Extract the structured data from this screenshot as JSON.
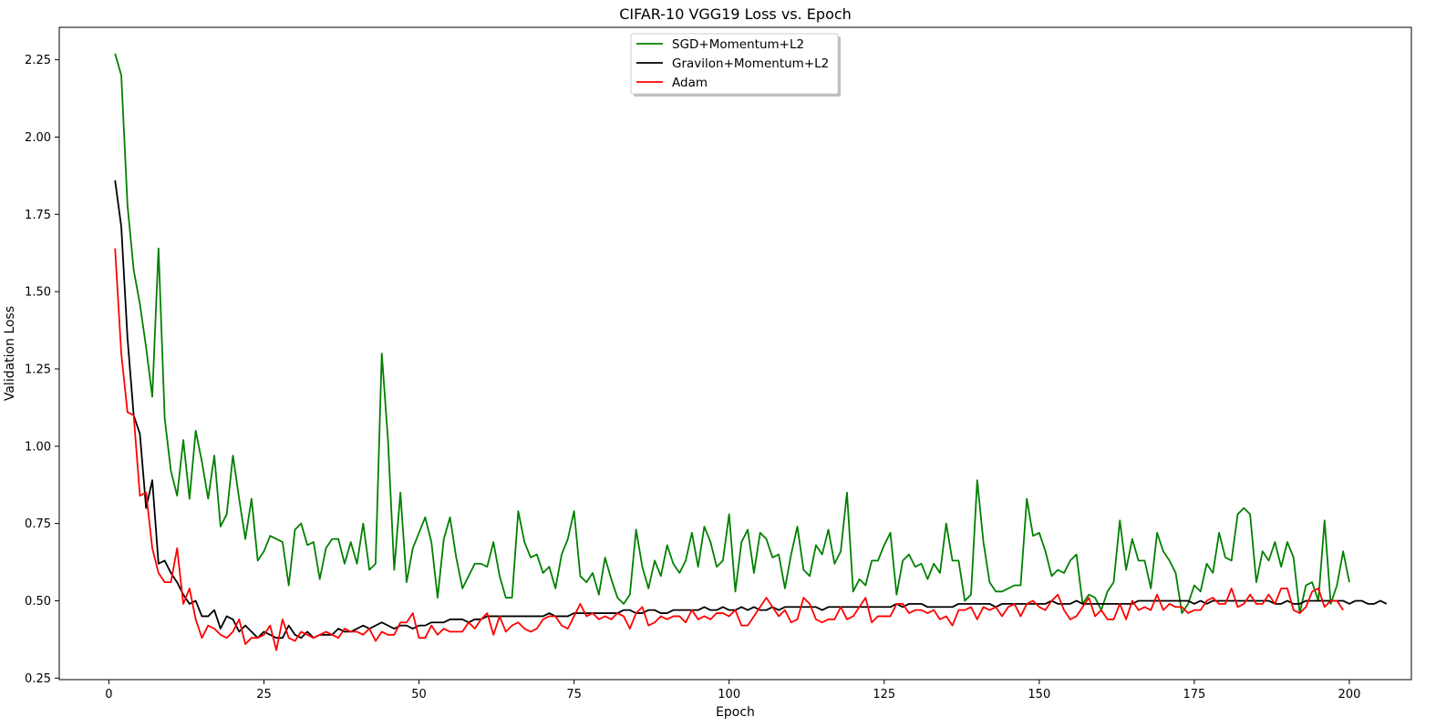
{
  "chart_data": {
    "type": "line",
    "title": "CIFAR-10 VGG19 Loss vs. Epoch",
    "xlabel": "Epoch",
    "ylabel": "Validation Loss",
    "xlim": [
      -8,
      210
    ],
    "ylim": [
      0.245,
      2.355
    ],
    "xticks": [
      0,
      25,
      50,
      75,
      100,
      125,
      150,
      175,
      200
    ],
    "yticks": [
      0.25,
      0.5,
      0.75,
      1.0,
      1.25,
      1.5,
      1.75,
      2.0,
      2.25
    ],
    "ytick_labels": [
      "0.25",
      "0.50",
      "0.75",
      "1.00",
      "1.25",
      "1.50",
      "1.75",
      "2.00",
      "2.25"
    ],
    "grid": false,
    "legend_position": "upper-center",
    "x_start": 1,
    "series": [
      {
        "name": "SGD+Momentum+L2",
        "color": "#008000",
        "values": [
          2.27,
          2.2,
          1.78,
          1.57,
          1.46,
          1.32,
          1.16,
          1.64,
          1.09,
          0.92,
          0.84,
          1.02,
          0.83,
          1.05,
          0.95,
          0.83,
          0.97,
          0.74,
          0.78,
          0.97,
          0.83,
          0.7,
          0.83,
          0.63,
          0.66,
          0.71,
          0.7,
          0.69,
          0.55,
          0.73,
          0.75,
          0.68,
          0.69,
          0.57,
          0.67,
          0.7,
          0.7,
          0.62,
          0.69,
          0.62,
          0.75,
          0.6,
          0.62,
          1.3,
          1.02,
          0.6,
          0.85,
          0.56,
          0.67,
          0.72,
          0.77,
          0.69,
          0.51,
          0.7,
          0.77,
          0.64,
          0.54,
          0.58,
          0.62,
          0.62,
          0.61,
          0.69,
          0.58,
          0.51,
          0.51,
          0.79,
          0.69,
          0.64,
          0.65,
          0.59,
          0.61,
          0.54,
          0.65,
          0.7,
          0.79,
          0.58,
          0.56,
          0.59,
          0.52,
          0.64,
          0.57,
          0.51,
          0.49,
          0.52,
          0.73,
          0.61,
          0.54,
          0.63,
          0.58,
          0.68,
          0.62,
          0.59,
          0.63,
          0.72,
          0.61,
          0.74,
          0.69,
          0.61,
          0.63,
          0.78,
          0.53,
          0.69,
          0.73,
          0.59,
          0.72,
          0.7,
          0.64,
          0.65,
          0.54,
          0.65,
          0.74,
          0.6,
          0.58,
          0.68,
          0.65,
          0.73,
          0.62,
          0.66,
          0.85,
          0.53,
          0.57,
          0.55,
          0.63,
          0.63,
          0.68,
          0.72,
          0.52,
          0.63,
          0.65,
          0.61,
          0.62,
          0.57,
          0.62,
          0.59,
          0.75,
          0.63,
          0.63,
          0.5,
          0.52,
          0.89,
          0.69,
          0.56,
          0.53,
          0.53,
          0.54,
          0.55,
          0.55,
          0.83,
          0.71,
          0.72,
          0.66,
          0.58,
          0.6,
          0.59,
          0.63,
          0.65,
          0.49,
          0.52,
          0.51,
          0.47,
          0.53,
          0.56,
          0.76,
          0.6,
          0.7,
          0.63,
          0.63,
          0.54,
          0.72,
          0.66,
          0.63,
          0.59,
          0.46,
          0.49,
          0.55,
          0.53,
          0.62,
          0.59,
          0.72,
          0.64,
          0.63,
          0.78,
          0.8,
          0.78,
          0.56,
          0.66,
          0.63,
          0.69,
          0.61,
          0.69,
          0.64,
          0.46,
          0.55,
          0.56,
          0.5,
          0.76,
          0.49,
          0.55,
          0.66,
          0.56
        ]
      },
      {
        "name": "Gravilon+Momentum+L2",
        "color": "#000000",
        "values": [
          1.86,
          1.71,
          1.35,
          1.1,
          1.04,
          0.8,
          0.89,
          0.62,
          0.63,
          0.59,
          0.56,
          0.52,
          0.49,
          0.5,
          0.45,
          0.45,
          0.47,
          0.41,
          0.45,
          0.44,
          0.4,
          0.42,
          0.4,
          0.38,
          0.4,
          0.39,
          0.38,
          0.38,
          0.42,
          0.39,
          0.38,
          0.4,
          0.38,
          0.39,
          0.39,
          0.39,
          0.41,
          0.4,
          0.4,
          0.41,
          0.42,
          0.41,
          0.42,
          0.43,
          0.42,
          0.41,
          0.42,
          0.42,
          0.41,
          0.42,
          0.42,
          0.43,
          0.43,
          0.43,
          0.44,
          0.44,
          0.44,
          0.43,
          0.44,
          0.44,
          0.45,
          0.45,
          0.45,
          0.45,
          0.45,
          0.45,
          0.45,
          0.45,
          0.45,
          0.45,
          0.46,
          0.45,
          0.45,
          0.45,
          0.46,
          0.46,
          0.46,
          0.46,
          0.46,
          0.46,
          0.46,
          0.46,
          0.47,
          0.47,
          0.46,
          0.46,
          0.47,
          0.47,
          0.46,
          0.46,
          0.47,
          0.47,
          0.47,
          0.47,
          0.47,
          0.48,
          0.47,
          0.47,
          0.48,
          0.47,
          0.47,
          0.48,
          0.47,
          0.48,
          0.47,
          0.47,
          0.48,
          0.47,
          0.48,
          0.48,
          0.48,
          0.48,
          0.48,
          0.48,
          0.47,
          0.48,
          0.48,
          0.48,
          0.48,
          0.48,
          0.48,
          0.48,
          0.48,
          0.48,
          0.48,
          0.48,
          0.49,
          0.48,
          0.49,
          0.49,
          0.49,
          0.48,
          0.48,
          0.48,
          0.48,
          0.48,
          0.49,
          0.49,
          0.49,
          0.49,
          0.49,
          0.49,
          0.48,
          0.49,
          0.49,
          0.49,
          0.49,
          0.49,
          0.49,
          0.49,
          0.49,
          0.5,
          0.49,
          0.49,
          0.49,
          0.5,
          0.49,
          0.49,
          0.49,
          0.49,
          0.49,
          0.49,
          0.49,
          0.49,
          0.49,
          0.5,
          0.5,
          0.5,
          0.5,
          0.5,
          0.5,
          0.5,
          0.5,
          0.5,
          0.49,
          0.5,
          0.49,
          0.5,
          0.5,
          0.5,
          0.5,
          0.5,
          0.5,
          0.5,
          0.5,
          0.5,
          0.5,
          0.49,
          0.49,
          0.5,
          0.49,
          0.49,
          0.5,
          0.5,
          0.5,
          0.5,
          0.5,
          0.5,
          0.5,
          0.49,
          0.5,
          0.5,
          0.49,
          0.49,
          0.5,
          0.49
        ]
      },
      {
        "name": "Adam",
        "color": "#ff0000",
        "values": [
          1.64,
          1.3,
          1.11,
          1.1,
          0.84,
          0.85,
          0.67,
          0.59,
          0.56,
          0.56,
          0.67,
          0.49,
          0.54,
          0.44,
          0.38,
          0.42,
          0.41,
          0.39,
          0.38,
          0.4,
          0.44,
          0.36,
          0.38,
          0.38,
          0.39,
          0.42,
          0.34,
          0.44,
          0.38,
          0.37,
          0.4,
          0.39,
          0.38,
          0.39,
          0.4,
          0.39,
          0.38,
          0.41,
          0.4,
          0.4,
          0.39,
          0.41,
          0.37,
          0.4,
          0.39,
          0.39,
          0.43,
          0.43,
          0.46,
          0.38,
          0.38,
          0.42,
          0.39,
          0.41,
          0.4,
          0.4,
          0.4,
          0.43,
          0.41,
          0.44,
          0.46,
          0.39,
          0.45,
          0.4,
          0.42,
          0.43,
          0.41,
          0.4,
          0.41,
          0.44,
          0.45,
          0.45,
          0.42,
          0.41,
          0.45,
          0.49,
          0.45,
          0.46,
          0.44,
          0.45,
          0.44,
          0.46,
          0.45,
          0.41,
          0.46,
          0.48,
          0.42,
          0.43,
          0.45,
          0.44,
          0.45,
          0.45,
          0.43,
          0.47,
          0.44,
          0.45,
          0.44,
          0.46,
          0.46,
          0.45,
          0.47,
          0.42,
          0.42,
          0.45,
          0.48,
          0.51,
          0.48,
          0.45,
          0.47,
          0.43,
          0.44,
          0.51,
          0.49,
          0.44,
          0.43,
          0.44,
          0.44,
          0.48,
          0.44,
          0.45,
          0.48,
          0.51,
          0.43,
          0.45,
          0.45,
          0.45,
          0.49,
          0.49,
          0.46,
          0.47,
          0.47,
          0.46,
          0.47,
          0.44,
          0.45,
          0.42,
          0.47,
          0.47,
          0.48,
          0.44,
          0.48,
          0.47,
          0.48,
          0.45,
          0.48,
          0.49,
          0.45,
          0.49,
          0.5,
          0.48,
          0.47,
          0.5,
          0.52,
          0.47,
          0.44,
          0.45,
          0.48,
          0.51,
          0.45,
          0.47,
          0.44,
          0.44,
          0.49,
          0.44,
          0.5,
          0.47,
          0.48,
          0.47,
          0.52,
          0.47,
          0.49,
          0.48,
          0.48,
          0.46,
          0.47,
          0.47,
          0.5,
          0.51,
          0.49,
          0.49,
          0.54,
          0.48,
          0.49,
          0.52,
          0.49,
          0.49,
          0.52,
          0.49,
          0.54,
          0.54,
          0.47,
          0.46,
          0.48,
          0.53,
          0.54,
          0.48,
          0.5,
          0.5,
          0.47
        ]
      }
    ]
  }
}
